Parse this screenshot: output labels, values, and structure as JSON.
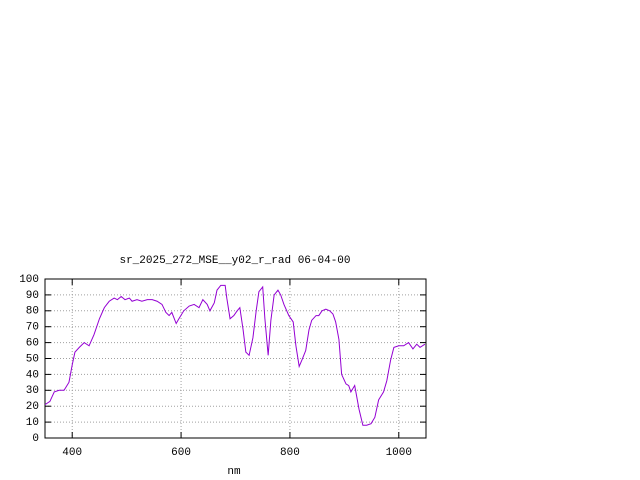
{
  "chart_data": {
    "type": "line",
    "title": "sr_2025_272_MSE__y02_r_rad 06-04-00",
    "x_label": "nm",
    "x": [
      350,
      359,
      367,
      376,
      385,
      394,
      400,
      405,
      413,
      422,
      431,
      440,
      450,
      459,
      468,
      477,
      483,
      490,
      497,
      505,
      510,
      519,
      528,
      538,
      547,
      556,
      565,
      572,
      578,
      583,
      591,
      596,
      605,
      615,
      624,
      633,
      640,
      648,
      653,
      661,
      666,
      673,
      681,
      684,
      690,
      697,
      703,
      708,
      714,
      719,
      725,
      732,
      738,
      743,
      750,
      754,
      760,
      765,
      771,
      778,
      783,
      789,
      798,
      806,
      811,
      817,
      822,
      829,
      835,
      840,
      848,
      853,
      859,
      866,
      873,
      879,
      884,
      890,
      895,
      903,
      908,
      912,
      919,
      927,
      934,
      941,
      949,
      956,
      963,
      972,
      978,
      985,
      991,
      1000,
      1009,
      1018,
      1026,
      1033,
      1039,
      1048
    ],
    "values": [
      21,
      23,
      29,
      30,
      30,
      35,
      46,
      54,
      57,
      60,
      58,
      65,
      75,
      82,
      86,
      88,
      87,
      89,
      87,
      88,
      86,
      87,
      86,
      87,
      87,
      86,
      84,
      79,
      77,
      79,
      72,
      75,
      80,
      83,
      84,
      82,
      87,
      84,
      80,
      85,
      93,
      96,
      96,
      88,
      75,
      77,
      80,
      82,
      68,
      54,
      52,
      63,
      80,
      92,
      95,
      75,
      52,
      74,
      90,
      93,
      90,
      84,
      77,
      73,
      58,
      45,
      49,
      55,
      68,
      74,
      77,
      77,
      80,
      81,
      80,
      78,
      73,
      62,
      40,
      34,
      33,
      29,
      33,
      18,
      8,
      8,
      9,
      13,
      24,
      29,
      36,
      49,
      57,
      58,
      58,
      60,
      56,
      59,
      57,
      59
    ],
    "color": "#9400d3",
    "xlim": [
      350,
      1050
    ],
    "xticks": [
      400,
      600,
      800,
      1000
    ],
    "ylim": [
      0,
      100
    ],
    "yticks": [
      0,
      10,
      20,
      30,
      40,
      50,
      60,
      70,
      80,
      90,
      100
    ],
    "grid": true
  }
}
